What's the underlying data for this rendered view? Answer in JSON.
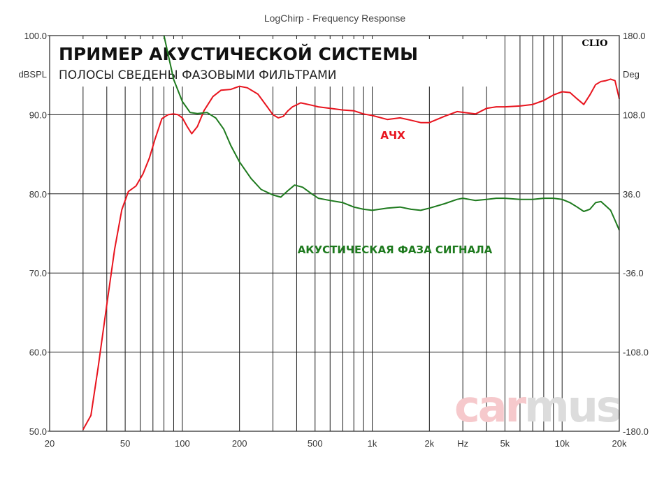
{
  "chart_data": {
    "type": "line",
    "title": "LogChirp - Frequency Response",
    "headline": "ПРИМЕР АКУСТИЧЕСКОЙ СИСТЕМЫ",
    "subheadline": "ПОЛОСЫ СВЕДЕНЫ ФАЗОВЫМИ ФИЛЬТРАМИ",
    "brand": "CLIO",
    "watermark": "carmus",
    "xlabel": "Hz",
    "ylabel_left": "dBSPL",
    "ylabel_right": "Deg",
    "x_scale": "log",
    "xlim": [
      20,
      20000
    ],
    "ylim_left": [
      50,
      100
    ],
    "ylim_right": [
      -180,
      180
    ],
    "x_ticks": [
      "20",
      "50",
      "100",
      "200",
      "500",
      "1k",
      "2k",
      "Hz",
      "5k",
      "10k",
      "20k"
    ],
    "y_ticks_left": [
      "100.0",
      "90.0",
      "80.0",
      "70.0",
      "60.0",
      "50.0"
    ],
    "y_ticks_right": [
      "180.0",
      "108.0",
      "36.0",
      "-36.0",
      "-108.0",
      "-180.0"
    ],
    "grid": true,
    "series": [
      {
        "name": "АЧХ",
        "axis": "left",
        "color": "#e8141e",
        "x": [
          30,
          33,
          36,
          40,
          44,
          48,
          52,
          57,
          62,
          67,
          72,
          78,
          84,
          90,
          95,
          100,
          106,
          112,
          120,
          130,
          145,
          160,
          180,
          200,
          220,
          250,
          280,
          300,
          320,
          340,
          360,
          380,
          420,
          480,
          520,
          600,
          700,
          800,
          900,
          1000,
          1200,
          1400,
          1600,
          1800,
          2000,
          2400,
          2800,
          3000,
          3500,
          4000,
          4500,
          5000,
          6000,
          7000,
          8000,
          9000,
          10000,
          11000,
          12000,
          13000,
          14000,
          15000,
          16000,
          17000,
          18000,
          19000,
          20000
        ],
        "values": [
          50.2,
          52.0,
          58.0,
          66.0,
          73.0,
          78.0,
          80.3,
          81.0,
          82.5,
          84.5,
          87.0,
          89.5,
          90.0,
          90.1,
          90.0,
          89.6,
          88.5,
          87.6,
          88.5,
          90.5,
          92.3,
          93.1,
          93.2,
          93.6,
          93.4,
          92.6,
          91.0,
          90.0,
          89.6,
          89.8,
          90.5,
          91.0,
          91.5,
          91.2,
          91.0,
          90.8,
          90.6,
          90.5,
          90.1,
          89.9,
          89.4,
          89.6,
          89.3,
          89.0,
          89.0,
          89.8,
          90.4,
          90.3,
          90.1,
          90.8,
          91.0,
          91.0,
          91.1,
          91.3,
          91.8,
          92.5,
          92.9,
          92.8,
          92.0,
          91.3,
          92.5,
          93.8,
          94.2,
          94.3,
          94.5,
          94.3,
          92.0
        ]
      },
      {
        "name": "АКУСТИЧЕСКАЯ ФАЗА СИГНАЛА",
        "axis": "right",
        "color": "#1e7a1e",
        "x": [
          80,
          90,
          100,
          110,
          120,
          135,
          150,
          165,
          180,
          200,
          230,
          260,
          300,
          330,
          360,
          390,
          430,
          480,
          520,
          600,
          700,
          800,
          900,
          1000,
          1200,
          1400,
          1600,
          1800,
          2000,
          2400,
          2800,
          3000,
          3500,
          4000,
          4500,
          5000,
          6000,
          7000,
          8000,
          9000,
          10000,
          11000,
          12000,
          13000,
          14000,
          15000,
          16000,
          17000,
          18000,
          19000,
          20000
        ],
        "values": [
          180,
          140,
          120,
          110,
          109,
          110,
          105,
          95,
          80,
          65,
          50,
          40,
          35,
          33,
          39,
          44,
          42,
          36,
          32,
          30,
          28,
          24,
          22,
          21,
          23,
          24,
          22,
          21,
          23,
          27,
          31,
          32,
          30,
          31,
          32,
          32,
          31,
          31,
          32,
          32,
          31,
          28,
          24,
          20,
          22,
          28,
          29,
          25,
          21,
          12,
          3
        ]
      }
    ]
  }
}
